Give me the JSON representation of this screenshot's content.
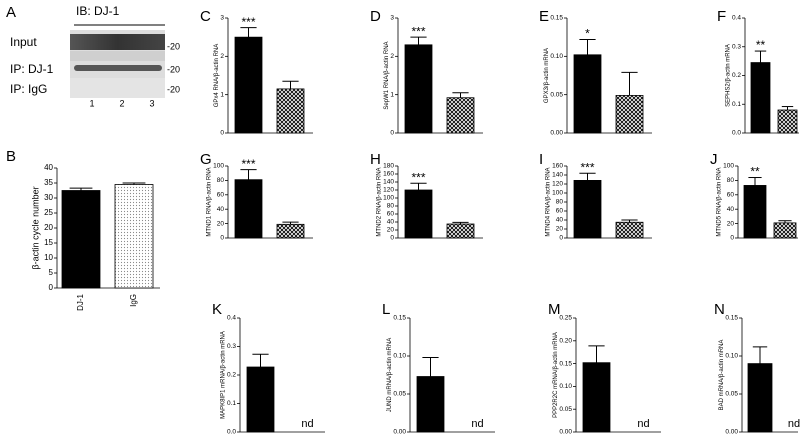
{
  "blot": {
    "panel": "A",
    "header": "IB: DJ-1",
    "rows": [
      "Input",
      "IP: DJ-1",
      "IP: IgG"
    ],
    "markers": [
      "-20",
      "-20",
      "-20"
    ],
    "lanes": [
      "1",
      "2",
      "3"
    ]
  },
  "chart_data": [
    {
      "type": "bar",
      "panel": "B",
      "ylabel": "β-actin cycle number",
      "categories": [
        "DJ-1",
        "IgG"
      ],
      "values": [
        32.5,
        34.5
      ],
      "errors": [
        0.8,
        0.5
      ],
      "fills": [
        "solid",
        "dots"
      ],
      "ylim": [
        0,
        40
      ],
      "yticks": [
        0,
        5,
        10,
        15,
        20,
        25,
        30,
        35,
        40
      ]
    },
    {
      "type": "bar",
      "panel": "C",
      "ylabel": "GPx4 RNA/β-actin RNA",
      "annotation": "***",
      "values": [
        2.5,
        1.15
      ],
      "errors": [
        0.25,
        0.2
      ],
      "fills": [
        "solid",
        "checker"
      ],
      "ylim": [
        0,
        3
      ],
      "yticks": [
        0,
        1,
        2,
        3
      ]
    },
    {
      "type": "bar",
      "panel": "D",
      "ylabel": "SepW1 RNA/β-actin RNA",
      "annotation": "***",
      "values": [
        2.3,
        0.92
      ],
      "errors": [
        0.2,
        0.13
      ],
      "fills": [
        "solid",
        "checker"
      ],
      "ylim": [
        0,
        3
      ],
      "yticks": [
        0,
        1,
        2,
        3
      ]
    },
    {
      "type": "bar",
      "panel": "E",
      "ylabel": "GPX3/β-actin mRNA",
      "annotation": "*",
      "values": [
        0.102,
        0.049
      ],
      "errors": [
        0.02,
        0.03
      ],
      "fills": [
        "solid",
        "checker"
      ],
      "ylim": [
        0,
        0.15
      ],
      "yticks": [
        {
          "value": 0,
          "label": "0.00"
        },
        0.05,
        {
          "value": 0.1,
          "label": "0.10"
        },
        0.15
      ]
    },
    {
      "type": "bar",
      "panel": "F",
      "ylabel": "SEPHS2/β-actin mRNA",
      "annotation": "**",
      "values": [
        0.245,
        0.08
      ],
      "errors": [
        0.04,
        0.012
      ],
      "fills": [
        "solid",
        "checker"
      ],
      "ylim": [
        0,
        0.4
      ],
      "yticks": [
        {
          "value": 0,
          "label": "0.0"
        },
        0.1,
        0.2,
        0.3,
        0.4
      ]
    },
    {
      "type": "bar",
      "panel": "G",
      "ylabel": "MTND1 RNA/β-actin RNA",
      "annotation": "***",
      "values": [
        81,
        19
      ],
      "errors": [
        14,
        3
      ],
      "fills": [
        "solid",
        "checker"
      ],
      "ylim": [
        0,
        100
      ],
      "yticks": [
        0,
        20,
        40,
        60,
        80,
        100
      ]
    },
    {
      "type": "bar",
      "panel": "H",
      "ylabel": "MTND2 RNA/β-actin RNA",
      "annotation": "***",
      "values": [
        120,
        35
      ],
      "errors": [
        17,
        4
      ],
      "fills": [
        "solid",
        "checker"
      ],
      "ylim": [
        0,
        180
      ],
      "yticks": [
        0,
        20,
        40,
        60,
        80,
        100,
        120,
        140,
        160,
        180
      ]
    },
    {
      "type": "bar",
      "panel": "I",
      "ylabel": "MTND4 RNA/β-actin RNA",
      "annotation": "***",
      "values": [
        128,
        35
      ],
      "errors": [
        16,
        5
      ],
      "fills": [
        "solid",
        "checker"
      ],
      "ylim": [
        0,
        160
      ],
      "yticks": [
        0,
        20,
        40,
        60,
        80,
        100,
        120,
        140,
        160
      ]
    },
    {
      "type": "bar",
      "panel": "J",
      "ylabel": "MTND5 RNA/β-actin RNA",
      "annotation": "**",
      "values": [
        73,
        21
      ],
      "errors": [
        11,
        3
      ],
      "fills": [
        "solid",
        "checker"
      ],
      "ylim": [
        0,
        100
      ],
      "yticks": [
        0,
        20,
        40,
        60,
        80,
        100
      ]
    },
    {
      "type": "bar",
      "panel": "K",
      "ylabel": "MAPK8IP1 mRNA/β-actin mRNA",
      "values": [
        0.228,
        null
      ],
      "errors": [
        0.045,
        null
      ],
      "value_labels": [
        null,
        "nd"
      ],
      "fills": [
        "solid",
        "solid"
      ],
      "ylim": [
        0,
        0.4
      ],
      "yticks": [
        {
          "value": 0,
          "label": "0.0"
        },
        0.1,
        0.2,
        0.3,
        0.4
      ]
    },
    {
      "type": "bar",
      "panel": "L",
      "ylabel": "JUND mRNA/β-actin mRNA",
      "values": [
        0.073,
        null
      ],
      "errors": [
        0.025,
        null
      ],
      "value_labels": [
        null,
        "nd"
      ],
      "fills": [
        "solid",
        "solid"
      ],
      "ylim": [
        0,
        0.15
      ],
      "yticks": [
        {
          "value": 0,
          "label": "0.00"
        },
        0.05,
        {
          "value": 0.1,
          "label": "0.10"
        },
        0.15
      ]
    },
    {
      "type": "bar",
      "panel": "M",
      "ylabel": "PPP2R2C mRNA/β-actin mRNA",
      "values": [
        0.152,
        null
      ],
      "errors": [
        0.037,
        null
      ],
      "value_labels": [
        null,
        "nd"
      ],
      "fills": [
        "solid",
        "solid"
      ],
      "ylim": [
        0,
        0.25
      ],
      "yticks": [
        {
          "value": 0,
          "label": "0.00"
        },
        0.05,
        {
          "value": 0.1,
          "label": "0.10"
        },
        0.15,
        {
          "value": 0.2,
          "label": "0.20"
        },
        0.25
      ]
    },
    {
      "type": "bar",
      "panel": "N",
      "ylabel": "BAD mRNA/β-actin mRNA",
      "values": [
        0.09,
        null
      ],
      "errors": [
        0.022,
        null
      ],
      "value_labels": [
        null,
        "nd"
      ],
      "fills": [
        "solid",
        "solid"
      ],
      "ylim": [
        0,
        0.15
      ],
      "yticks": [
        {
          "value": 0,
          "label": "0.00"
        },
        0.05,
        {
          "value": 0.1,
          "label": "0.10"
        },
        0.15
      ]
    }
  ]
}
